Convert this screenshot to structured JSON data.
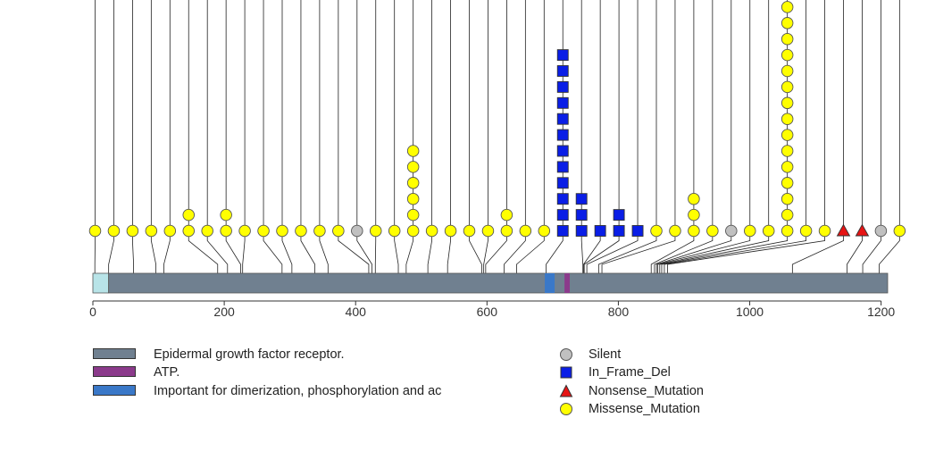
{
  "chart_data": {
    "type": "lollipop",
    "protein_length": 1210,
    "x_axis": {
      "ticks": [
        0,
        200,
        400,
        600,
        800,
        1000,
        1200
      ],
      "xlim": [
        0,
        1210
      ]
    },
    "domains": [
      {
        "name": "Epidermal growth factor receptor.",
        "start": 24,
        "end": 1210,
        "color": "#708090"
      },
      {
        "name": "ATP.",
        "start": 718,
        "end": 726,
        "color": "#8b3a8b"
      },
      {
        "name": "Important for dimerization, phosphorylation and ac",
        "start": 688,
        "end": 703,
        "color": "#3a78c8"
      }
    ],
    "signal_region": {
      "start": 1,
      "end": 24,
      "color": "#b8e4e8"
    },
    "mutation_types": [
      {
        "name": "Silent",
        "shape": "circle",
        "color": "#c0c0c0"
      },
      {
        "name": "In_Frame_Del",
        "shape": "square",
        "color": "#0a1ee6"
      },
      {
        "name": "Nonsense_Mutation",
        "shape": "triangle",
        "color": "#e61414"
      },
      {
        "name": "Missense_Mutation",
        "shape": "circle",
        "color": "#ffff00"
      }
    ],
    "sites": [
      {
        "slot": 0,
        "position": 3,
        "type": "Missense_Mutation",
        "count": 1
      },
      {
        "slot": 1,
        "position": 24,
        "type": "Missense_Mutation",
        "count": 1
      },
      {
        "slot": 2,
        "position": 62,
        "type": "Missense_Mutation",
        "count": 1
      },
      {
        "slot": 3,
        "position": 96,
        "type": "Missense_Mutation",
        "count": 1
      },
      {
        "slot": 4,
        "position": 108,
        "type": "Missense_Mutation",
        "count": 1
      },
      {
        "slot": 5,
        "position": 190,
        "type": "Missense_Mutation",
        "count": 2
      },
      {
        "slot": 6,
        "position": 205,
        "type": "Missense_Mutation",
        "count": 1
      },
      {
        "slot": 7,
        "position": 225,
        "type": "Missense_Mutation",
        "count": 2
      },
      {
        "slot": 8,
        "position": 228,
        "type": "Missense_Mutation",
        "count": 1
      },
      {
        "slot": 9,
        "position": 288,
        "type": "Missense_Mutation",
        "count": 1
      },
      {
        "slot": 10,
        "position": 303,
        "type": "Missense_Mutation",
        "count": 1
      },
      {
        "slot": 11,
        "position": 338,
        "type": "Missense_Mutation",
        "count": 1
      },
      {
        "slot": 12,
        "position": 358,
        "type": "Missense_Mutation",
        "count": 1
      },
      {
        "slot": 13,
        "position": 420,
        "type": "Missense_Mutation",
        "count": 1
      },
      {
        "slot": 14,
        "position": 425,
        "type": "Silent",
        "count": 1
      },
      {
        "slot": 15,
        "position": 430,
        "type": "Missense_Mutation",
        "count": 1
      },
      {
        "slot": 16,
        "position": 465,
        "type": "Missense_Mutation",
        "count": 1
      },
      {
        "slot": 17,
        "position": 477,
        "type": "Missense_Mutation",
        "count": 6
      },
      {
        "slot": 18,
        "position": 510,
        "type": "Missense_Mutation",
        "count": 1
      },
      {
        "slot": 19,
        "position": 540,
        "type": "Missense_Mutation",
        "count": 1
      },
      {
        "slot": 20,
        "position": 592,
        "type": "Missense_Mutation",
        "count": 1
      },
      {
        "slot": 21,
        "position": 595,
        "type": "Missense_Mutation",
        "count": 1
      },
      {
        "slot": 22,
        "position": 598,
        "type": "Missense_Mutation",
        "count": 2
      },
      {
        "slot": 23,
        "position": 626,
        "type": "Missense_Mutation",
        "count": 1
      },
      {
        "slot": 24,
        "position": 645,
        "type": "Missense_Mutation",
        "count": 1
      },
      {
        "slot": 25,
        "position": 690,
        "type": "In_Frame_Del",
        "count": 12
      },
      {
        "slot": 26,
        "position": 746,
        "type": "In_Frame_Del",
        "count": 3
      },
      {
        "slot": 27,
        "position": 747,
        "type": "In_Frame_Del",
        "count": 1
      },
      {
        "slot": 28,
        "position": 748,
        "type": "In_Frame_Del",
        "count": 2
      },
      {
        "slot": 29,
        "position": 752,
        "type": "In_Frame_Del",
        "count": 1
      },
      {
        "slot": 30,
        "position": 770,
        "type": "Missense_Mutation",
        "count": 1
      },
      {
        "slot": 31,
        "position": 775,
        "type": "Missense_Mutation",
        "count": 1
      },
      {
        "slot": 32,
        "position": 850,
        "type": "Missense_Mutation",
        "count": 3
      },
      {
        "slot": 33,
        "position": 855,
        "type": "Missense_Mutation",
        "count": 1
      },
      {
        "slot": 34,
        "position": 858,
        "type": "Silent",
        "count": 1
      },
      {
        "slot": 35,
        "position": 860,
        "type": "Missense_Mutation",
        "count": 1
      },
      {
        "slot": 36,
        "position": 863,
        "type": "Missense_Mutation",
        "count": 1
      },
      {
        "slot": 37,
        "position": 866,
        "type": "Missense_Mutation",
        "count": 15
      },
      {
        "slot": 38,
        "position": 870,
        "type": "Missense_Mutation",
        "count": 1
      },
      {
        "slot": 39,
        "position": 875,
        "type": "Missense_Mutation",
        "count": 1
      },
      {
        "slot": 40,
        "position": 1065,
        "type": "Nonsense_Mutation",
        "count": 1
      },
      {
        "slot": 41,
        "position": 1148,
        "type": "Nonsense_Mutation",
        "count": 1
      },
      {
        "slot": 42,
        "position": 1172,
        "type": "Silent",
        "count": 1
      },
      {
        "slot": 43,
        "position": 1197,
        "type": "Missense_Mutation",
        "count": 1
      }
    ]
  }
}
